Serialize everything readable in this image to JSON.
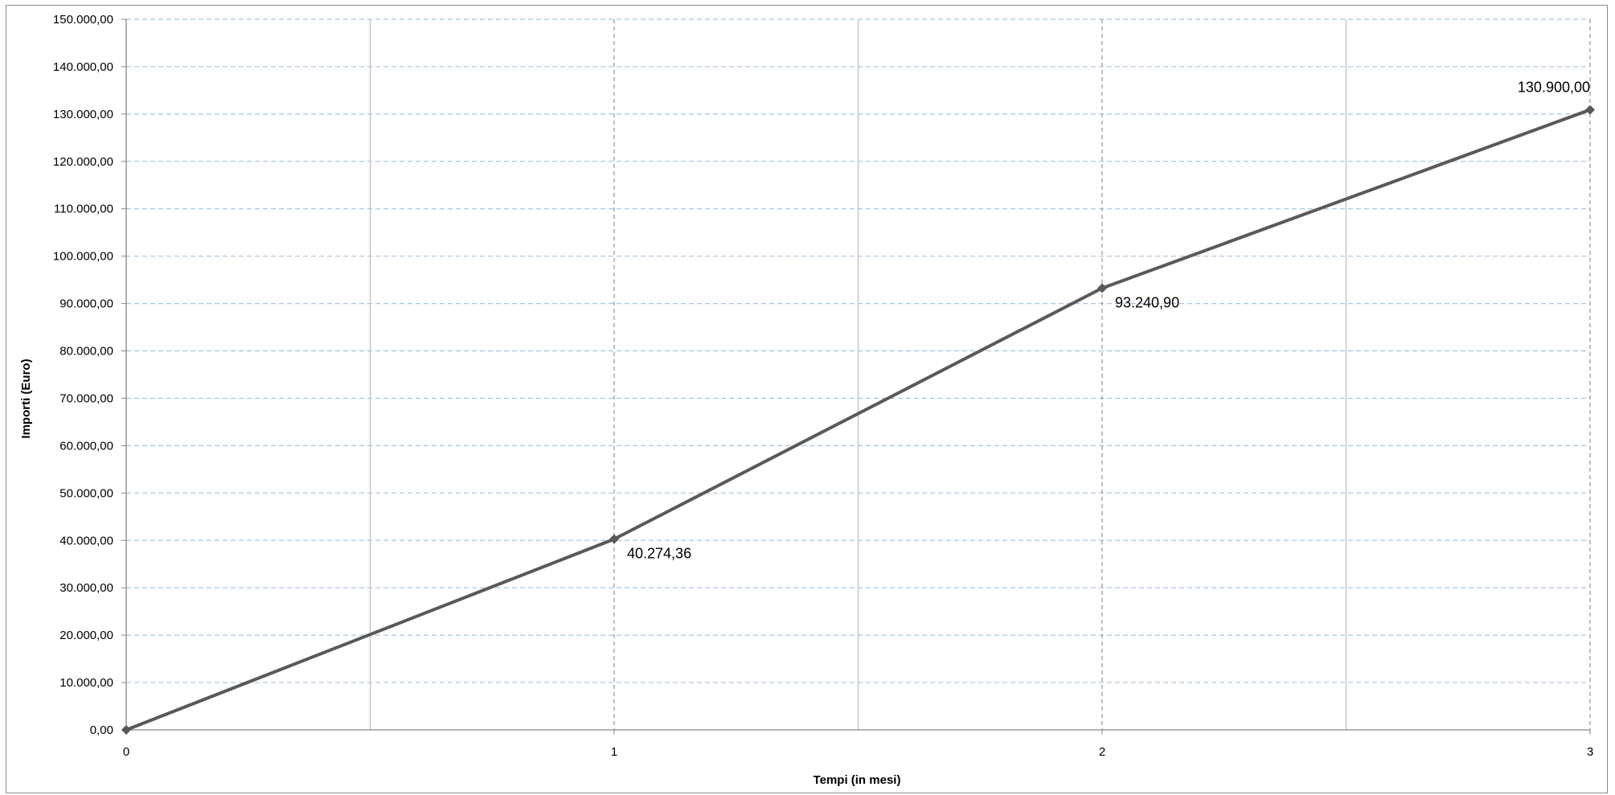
{
  "chart_data": {
    "type": "line",
    "title": "",
    "xlabel": "Tempi (in mesi)",
    "ylabel": "Importi (Euro)",
    "x": [
      0,
      1,
      2,
      3
    ],
    "x_tick_labels": [
      "0",
      "1",
      "2",
      "3"
    ],
    "series": [
      {
        "values": [
          0,
          40274.36,
          93240.9,
          130900.0
        ],
        "data_labels": [
          "",
          "40.274,36",
          "93.240,90",
          "130.900,00"
        ],
        "color": "#595959",
        "marker": "diamond"
      }
    ],
    "xlim": [
      0,
      3
    ],
    "ylim": [
      0,
      150000
    ],
    "y_ticks": [
      0,
      10000,
      20000,
      30000,
      40000,
      50000,
      60000,
      70000,
      80000,
      90000,
      100000,
      110000,
      120000,
      130000,
      140000,
      150000
    ],
    "y_tick_labels": [
      "0,00",
      "10.000,00",
      "20.000,00",
      "30.000,00",
      "40.000,00",
      "50.000,00",
      "60.000,00",
      "70.000,00",
      "80.000,00",
      "90.000,00",
      "100.000,00",
      "110.000,00",
      "120.000,00",
      "130.000,00",
      "140.000,00",
      "150.000,00"
    ],
    "grid": true,
    "gridline_color": "#a8c4e0",
    "legend": "none"
  }
}
